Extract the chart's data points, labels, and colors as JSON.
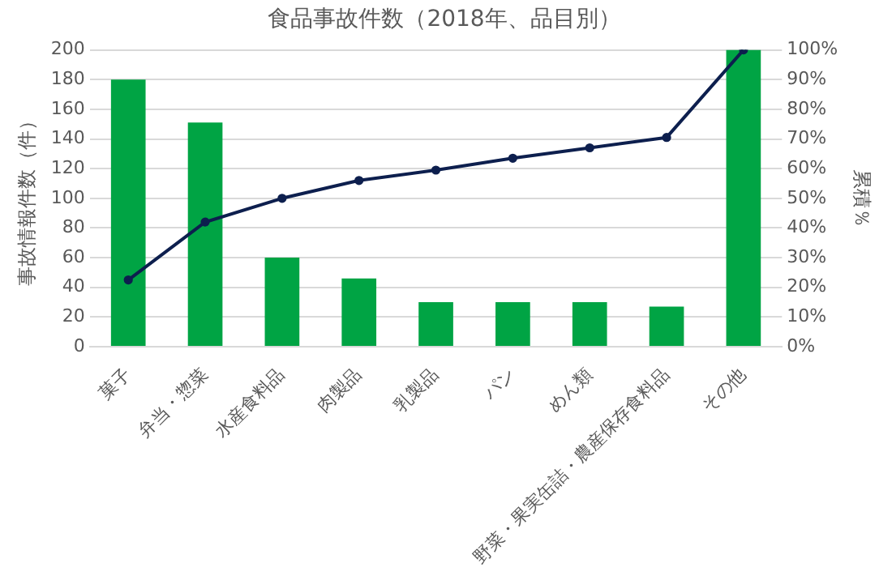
{
  "chart_data": {
    "type": "bar",
    "title": "食品事故件数（2018年、品目別）",
    "ylabel": "事故情報件数（件）",
    "y2label": "累積％",
    "categories": [
      "菓子",
      "弁当・惣菜",
      "水産食料品",
      "肉製品",
      "乳製品",
      "パン",
      "めん類",
      "野菜・果実缶詰・農産保存食料品",
      "その他"
    ],
    "series": [
      {
        "color": "#00a444",
        "values": [
          180,
          151,
          60,
          46,
          30,
          30,
          30,
          27,
          200
        ]
      },
      {
        "type": "line",
        "axis": "y2",
        "color": "#0d1f4e",
        "values": [
          22.5,
          42,
          50,
          56,
          59.5,
          63.5,
          67,
          70.5,
          100
        ]
      }
    ],
    "ylim": [
      0,
      200
    ],
    "yticks": [
      0,
      20,
      40,
      60,
      80,
      100,
      120,
      140,
      160,
      180,
      200
    ],
    "y2lim": [
      0,
      100
    ],
    "y2ticks": [
      {
        "value": 0,
        "label": "0%"
      },
      {
        "value": 10,
        "label": "10%"
      },
      {
        "value": 20,
        "label": "20%"
      },
      {
        "value": 30,
        "label": "30%"
      },
      {
        "value": 40,
        "label": "40%"
      },
      {
        "value": 50,
        "label": "50%"
      },
      {
        "value": 60,
        "label": "60%"
      },
      {
        "value": 70,
        "label": "70%"
      },
      {
        "value": 80,
        "label": "80%"
      },
      {
        "value": 90,
        "label": "90%"
      },
      {
        "value": 100,
        "label": "100%"
      }
    ],
    "grid": "y",
    "legend": false,
    "marker": "circle",
    "line_style": "solid"
  }
}
